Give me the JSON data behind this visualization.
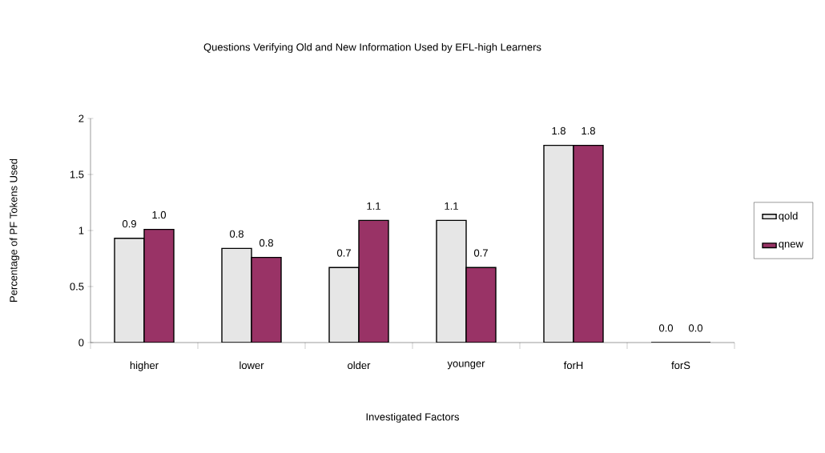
{
  "chart_data": {
    "type": "bar",
    "title": "Questions Verifying Old and New Information Used by EFL-high Learners",
    "xlabel": "Investigated Factors",
    "ylabel": "Percentage of PF Tokens Used",
    "categories": [
      "higher",
      "lower",
      "older",
      "younger",
      "forH",
      "forS"
    ],
    "series": [
      {
        "name": "qold",
        "color": "#e6e6e6",
        "values": [
          0.93,
          0.84,
          0.67,
          1.09,
          1.76,
          0
        ],
        "value_labels": [
          "0.9",
          "0.8",
          "0.7",
          "1.1",
          "1.8",
          "0.0"
        ]
      },
      {
        "name": "qnew",
        "color": "#993366",
        "values": [
          1.01,
          0.76,
          1.09,
          0.67,
          1.76,
          0
        ],
        "value_labels": [
          "1.0",
          "0.8",
          "1.1",
          "0.7",
          "1.8",
          "0.0"
        ]
      }
    ],
    "ylim": [
      0,
      2
    ],
    "yticks": [
      0,
      {
        "value": 0.5,
        "label": "0.5"
      },
      1,
      {
        "value": 1.5,
        "label": "1.5"
      },
      2
    ],
    "grid": false,
    "legend": "right"
  }
}
